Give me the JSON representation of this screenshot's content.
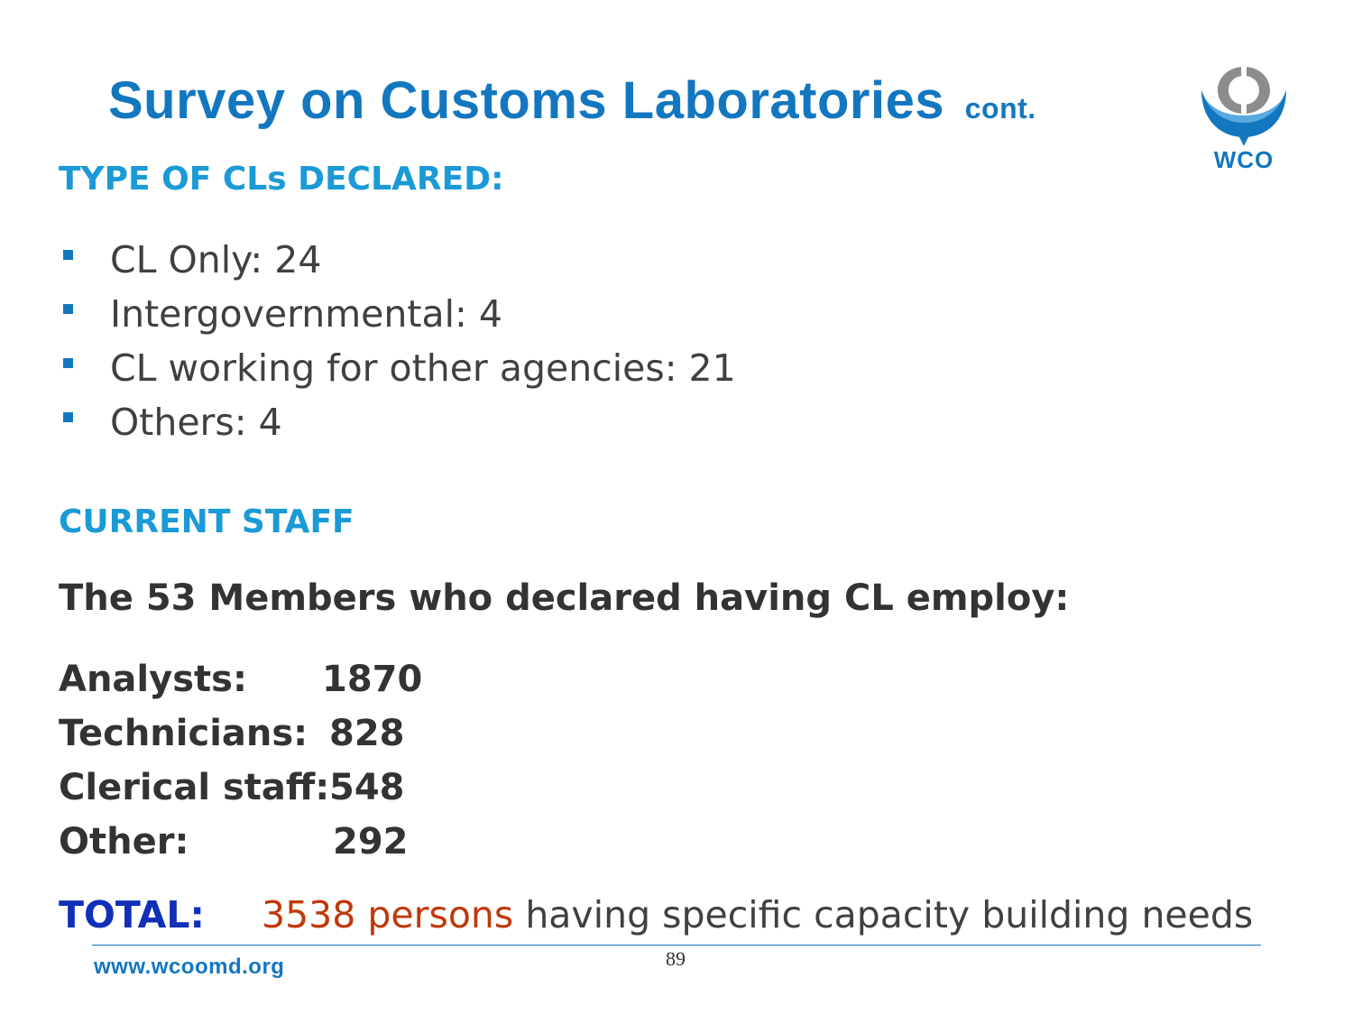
{
  "slide": {
    "title": "Survey on Customs Laboratories",
    "title_suffix": "cont.",
    "logo_text": "WCO"
  },
  "types_section": {
    "heading": "TYPE OF CLs DECLARED:",
    "items": [
      {
        "label": "CL Only: 24"
      },
      {
        "label": "Intergovernmental: 4"
      },
      {
        "label": "CL working for other agencies: 21"
      },
      {
        "label": "Others: 4"
      }
    ]
  },
  "staff_section": {
    "heading": "CURRENT STAFF",
    "intro": "The 53 Members who declared having CL employ:",
    "rows": [
      {
        "label": "Analysts:",
        "value": "1870"
      },
      {
        "label": "Technicians:",
        "value": "828"
      },
      {
        "label": "Clerical staff:",
        "value": "548"
      },
      {
        "label": "Other:",
        "value": "292"
      }
    ]
  },
  "total": {
    "label": "TOTAL:",
    "highlight": "3538 persons",
    "rest": " having specific capacity building needs"
  },
  "footer": {
    "url": "www.wcoomd.org",
    "page_number": "89"
  },
  "colors": {
    "brand_blue": "#1377bf",
    "heading_blue": "#1a9ad6",
    "total_blue": "#1030b8",
    "highlight_orange": "#c0390b",
    "body_text": "#404040"
  }
}
